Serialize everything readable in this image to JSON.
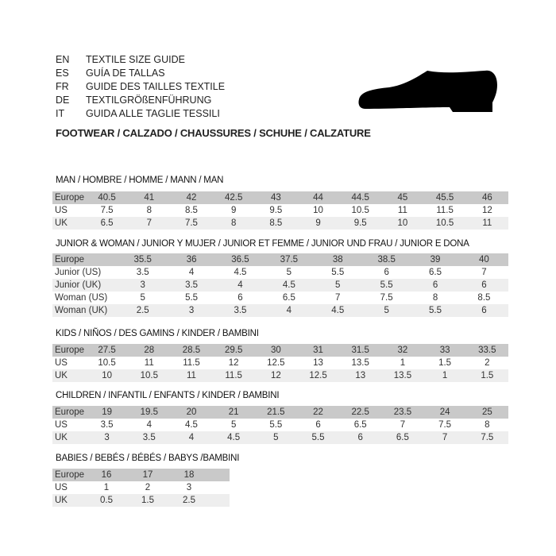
{
  "header": {
    "guides": [
      {
        "code": "EN",
        "text": "TEXTILE SIZE GUIDE"
      },
      {
        "code": "ES",
        "text": "GUÍA DE TALLAS"
      },
      {
        "code": "FR",
        "text": "GUIDE DES TAILLES TEXTILE"
      },
      {
        "code": "DE",
        "text": "TEXTILGRÖßENFÜHRUNG"
      },
      {
        "code": "IT",
        "text": "GUIDA ALLE TAGLIE TESSILI"
      }
    ],
    "footwear": "FOOTWEAR / CALZADO / CHAUSSURES / SCHUHE / CALZATURE",
    "icon": "shoe-icon",
    "icon_color": "#000000"
  },
  "sections": [
    {
      "title": "MAN / HOMBRE / HOMME / MANN / MAN",
      "rows": [
        {
          "label": "Europe",
          "values": [
            "40.5",
            "41",
            "42",
            "42.5",
            "43",
            "44",
            "44.5",
            "45",
            "45.5",
            "46"
          ]
        },
        {
          "label": "US",
          "values": [
            "7.5",
            "8",
            "8.5",
            "9",
            "9.5",
            "10",
            "10.5",
            "11",
            "11.5",
            "12"
          ]
        },
        {
          "label": "UK",
          "values": [
            "6.5",
            "7",
            "7.5",
            "8",
            "8.5",
            "9",
            "9.5",
            "10",
            "10.5",
            "11"
          ]
        }
      ]
    },
    {
      "title": "JUNIOR & WOMAN / JUNIOR Y MUJER / JUNIOR ET FEMME / JUNIOR UND FRAU / JUNIOR E DONA",
      "rows": [
        {
          "label": "Europe",
          "values": [
            "35.5",
            "36",
            "36.5",
            "37.5",
            "38",
            "38.5",
            "39",
            "40"
          ]
        },
        {
          "label": "Junior (US)",
          "values": [
            "3.5",
            "4",
            "4.5",
            "5",
            "5.5",
            "6",
            "6.5",
            "7"
          ]
        },
        {
          "label": "Junior (UK)",
          "values": [
            "3",
            "3.5",
            "4",
            "4.5",
            "5",
            "5.5",
            "6",
            "6"
          ]
        },
        {
          "label": "Woman (US)",
          "values": [
            "5",
            "5.5",
            "6",
            "6.5",
            "7",
            "7.5",
            "8",
            "8.5"
          ]
        },
        {
          "label": "Woman (UK)",
          "values": [
            "2.5",
            "3",
            "3.5",
            "4",
            "4.5",
            "5",
            "5.5",
            "6"
          ]
        }
      ]
    },
    {
      "title": "KIDS / NIÑOS / DES GAMINS / KINDER / BAMBINI",
      "rows": [
        {
          "label": "Europe",
          "values": [
            "27.5",
            "28",
            "28.5",
            "29.5",
            "30",
            "31",
            "31.5",
            "32",
            "33",
            "33.5"
          ]
        },
        {
          "label": "US",
          "values": [
            "10.5",
            "11",
            "11.5",
            "12",
            "12.5",
            "13",
            "13.5",
            "1",
            "1.5",
            "2"
          ]
        },
        {
          "label": "UK",
          "values": [
            "10",
            "10.5",
            "11",
            "11.5",
            "12",
            "12.5",
            "13",
            "13.5",
            "1",
            "1.5"
          ]
        }
      ]
    },
    {
      "title": "CHILDREN / INFANTIL / ENFANTS / KINDER / BAMBINI",
      "rows": [
        {
          "label": "Europe",
          "values": [
            "19",
            "19.5",
            "20",
            "21",
            "21.5",
            "22",
            "22.5",
            "23.5",
            "24",
            "25"
          ]
        },
        {
          "label": "US",
          "values": [
            "3.5",
            "4",
            "4.5",
            "5",
            "5.5",
            "6",
            "6.5",
            "7",
            "7.5",
            "8"
          ]
        },
        {
          "label": "UK",
          "values": [
            "3",
            "3.5",
            "4",
            "4.5",
            "5",
            "5.5",
            "6",
            "6.5",
            "7",
            "7.5"
          ]
        }
      ]
    },
    {
      "title": "BABIES  / BEBÉS / BÉBÉS / BABYS /BAMBINI",
      "rows": [
        {
          "label": "Europe",
          "values": [
            "16",
            "17",
            "18"
          ]
        },
        {
          "label": "US",
          "values": [
            "1",
            "2",
            "3"
          ]
        },
        {
          "label": "UK",
          "values": [
            "0.5",
            "1.5",
            "2.5"
          ]
        }
      ]
    }
  ]
}
